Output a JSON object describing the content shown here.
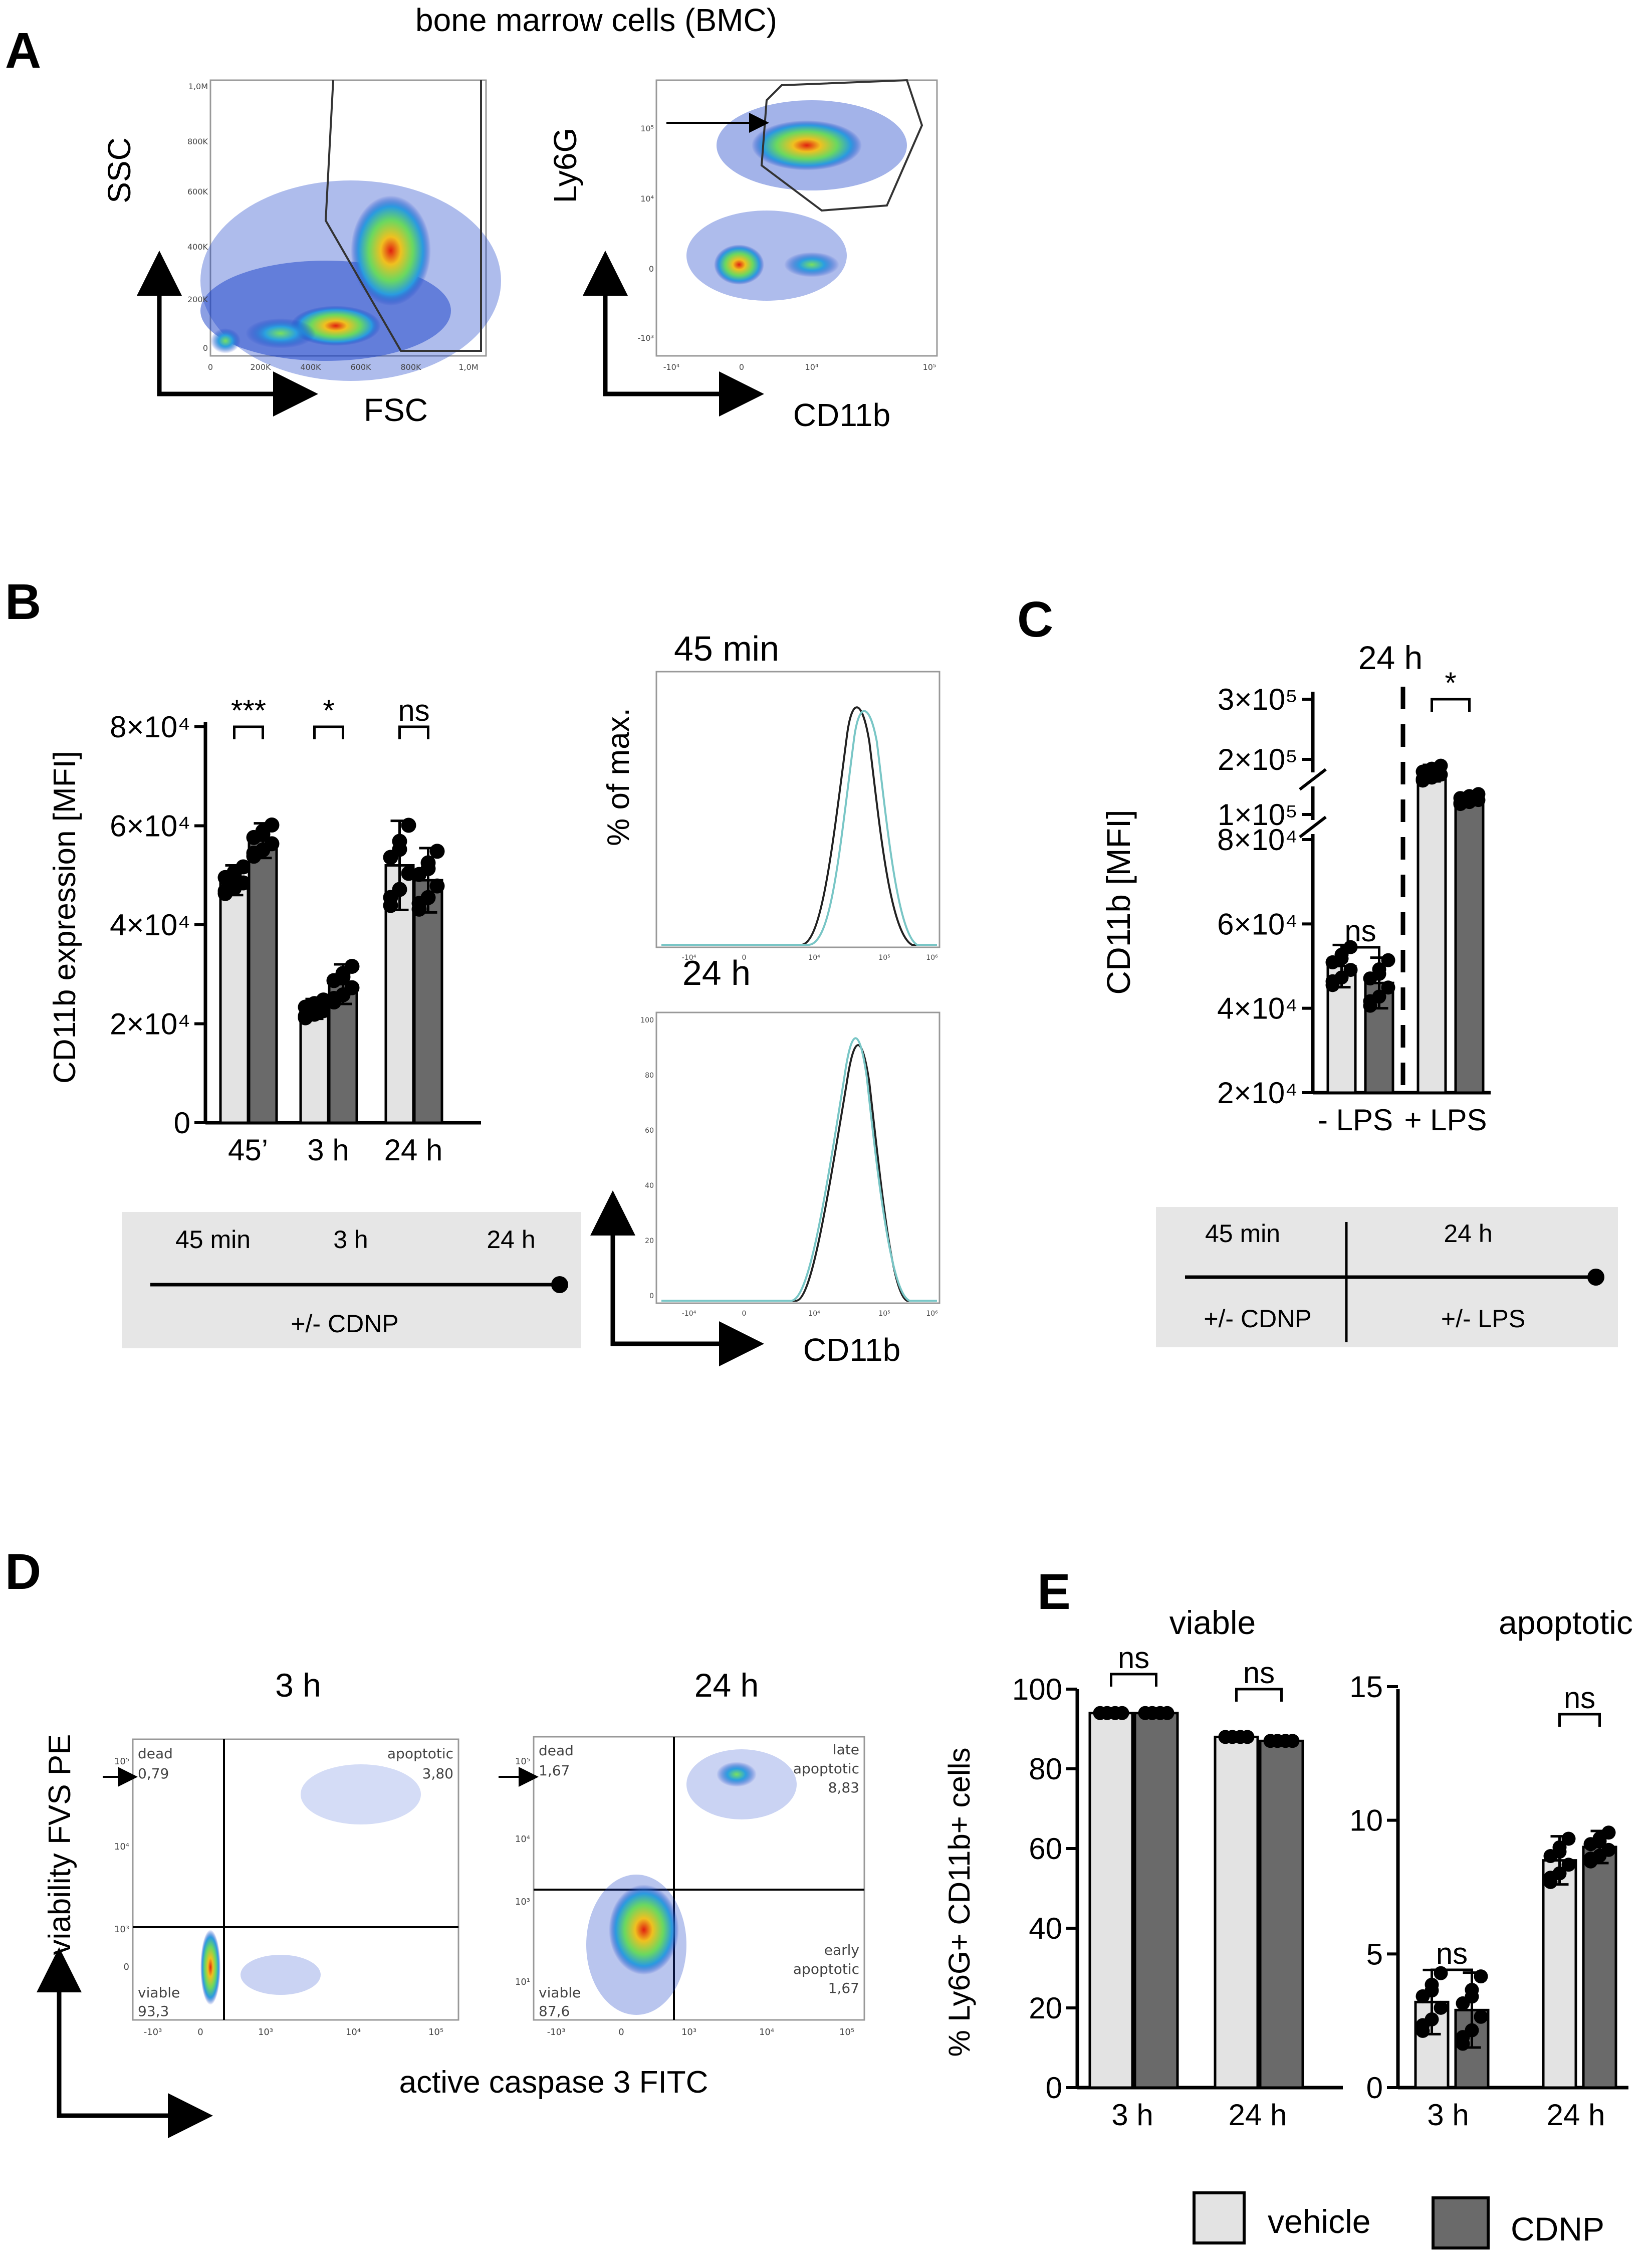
{
  "panels": {
    "A": {
      "letter": "A",
      "title": "bone marrow cells (BMC)",
      "plot1": {
        "y": "SSC",
        "x": "FSC",
        "yticks": [
          "1,0M",
          "800K",
          "600K",
          "400K",
          "200K",
          "0"
        ],
        "xticks": [
          "0",
          "200K",
          "400K",
          "600K",
          "800K",
          "1,0M"
        ]
      },
      "plot2": {
        "y": "Ly6G",
        "x": "CD11b",
        "yticks": [
          "10⁵",
          "10⁴",
          "0",
          "-10³"
        ],
        "xticks": [
          "-10⁴",
          "0",
          "10⁴",
          "10⁵"
        ]
      }
    },
    "B": {
      "letter": "B"
    },
    "C": {
      "letter": "C"
    },
    "D": {
      "letter": "D",
      "y": "viability FVS PE",
      "x": "active caspase 3 FITC",
      "p3h": {
        "title": "3 h",
        "dead": "dead",
        "dead_v": "0,79",
        "apop": "apoptotic",
        "apop_v": "3,80",
        "viable": "viable",
        "viable_v": "93,3"
      },
      "p24h": {
        "title": "24 h",
        "dead": "dead",
        "dead_v": "1,67",
        "late": "late",
        "late2": "apoptotic",
        "late_v": "8,83",
        "early": "early",
        "early2": "apoptotic",
        "early_v": "1,67",
        "viable": "viable",
        "viable_v": "87,6"
      },
      "yticks": [
        "10⁵",
        "10⁴",
        "10³",
        "0",
        "10¹"
      ],
      "xticks": [
        "-10³",
        "0",
        "10³",
        "10⁴",
        "10⁵"
      ]
    },
    "E": {
      "letter": "E"
    }
  },
  "histo": {
    "t1": "45 min",
    "t2": "24 h",
    "y": "% of max.",
    "x": "CD11b",
    "xticks": [
      "-10⁴",
      "0",
      "10⁴",
      "10⁵",
      "10⁶"
    ],
    "yticks": [
      "100",
      "80",
      "60",
      "40",
      "20",
      "0"
    ]
  },
  "timelineB": {
    "t1": "45 min",
    "t2": "3 h",
    "t3": "24 h",
    "label": "+/- CDNP"
  },
  "timelineC": {
    "t1": "45 min",
    "t2": "24 h",
    "l1": "+/- CDNP",
    "l2": "+/- LPS"
  },
  "legend": {
    "vehicle": "vehicle",
    "cdnp": "CDNP"
  },
  "colors": {
    "vehicle": "#e3e3e3",
    "cdnp": "#6a6a6a",
    "trace_vehicle": "#222222",
    "trace_cdnp": "#79c6c6",
    "timeline_bg": "#e6e6e6"
  },
  "chart_data": [
    {
      "id": "B",
      "type": "bar",
      "title": "",
      "ylabel": "CD11b expression [MFI]",
      "categories": [
        "45’",
        "3 h",
        "24 h"
      ],
      "ylim": [
        0,
        80000
      ],
      "yticklabels": [
        "0",
        "2×10⁴",
        "4×10⁴",
        "6×10⁴",
        "8×10⁴"
      ],
      "series": [
        {
          "name": "vehicle",
          "values": [
            49000,
            23000,
            52000
          ],
          "errors": [
            3000,
            2000,
            9000
          ]
        },
        {
          "name": "CDNP",
          "values": [
            57000,
            28000,
            49000
          ],
          "errors": [
            3500,
            4000,
            6500
          ]
        }
      ],
      "significance": [
        "***",
        "*",
        "ns"
      ]
    },
    {
      "id": "C",
      "type": "bar",
      "title": "24 h",
      "ylabel": "CD11b [MFI]",
      "categories": [
        "- LPS",
        "+ LPS"
      ],
      "ylim": [
        20000,
        300000
      ],
      "yticklabels": [
        "2×10⁴",
        "4×10⁴",
        "6×10⁴",
        "8×10⁴",
        "1×10⁵",
        "2×10⁵",
        "3×10⁵"
      ],
      "series": [
        {
          "name": "vehicle",
          "values": [
            50000,
            175000
          ],
          "errors": [
            5000,
            15000
          ]
        },
        {
          "name": "CDNP",
          "values": [
            46000,
            128000
          ],
          "errors": [
            6000,
            10000
          ]
        }
      ],
      "significance": [
        "ns",
        "*"
      ]
    },
    {
      "id": "E1",
      "type": "bar",
      "title": "viable",
      "ylabel": "% Ly6G+ CD11b+ cells",
      "categories": [
        "3 h",
        "24 h"
      ],
      "ylim": [
        0,
        100
      ],
      "yticklabels": [
        "0",
        "20",
        "40",
        "60",
        "80",
        "100"
      ],
      "series": [
        {
          "name": "vehicle",
          "values": [
            94,
            88
          ]
        },
        {
          "name": "CDNP",
          "values": [
            94,
            87
          ]
        }
      ],
      "significance": [
        "ns",
        "ns"
      ]
    },
    {
      "id": "E2",
      "type": "bar",
      "title": "apoptotic",
      "ylabel": "",
      "categories": [
        "3 h",
        "24 h"
      ],
      "ylim": [
        0,
        15
      ],
      "yticklabels": [
        "0",
        "5",
        "10",
        "15"
      ],
      "series": [
        {
          "name": "vehicle",
          "values": [
            3.2,
            8.5
          ],
          "errors": [
            1.2,
            0.9
          ]
        },
        {
          "name": "CDNP",
          "values": [
            2.9,
            9.0
          ],
          "errors": [
            1.4,
            0.6
          ]
        }
      ],
      "significance": [
        "ns",
        "ns"
      ]
    }
  ]
}
